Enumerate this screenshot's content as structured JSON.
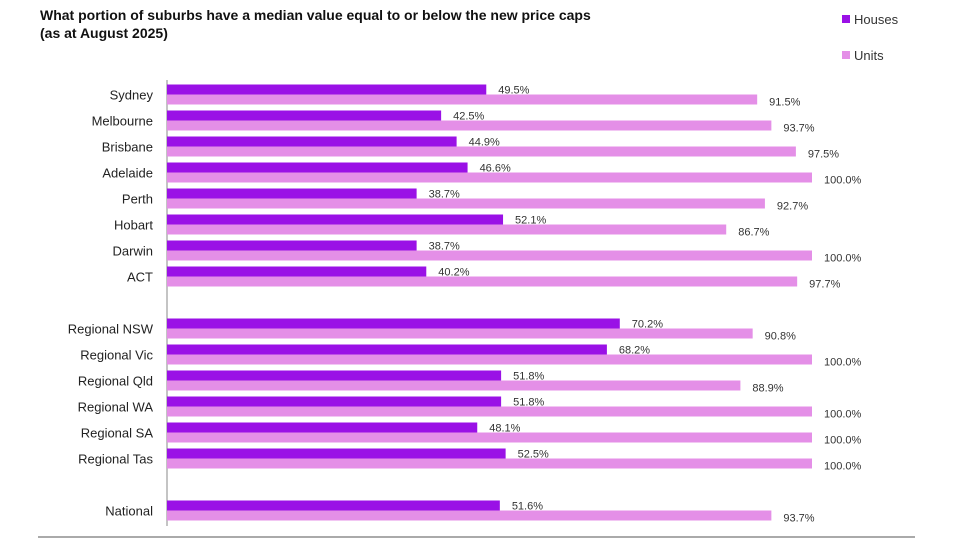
{
  "title_line1": "What portion of suburbs have a median value equal to or below the new price caps",
  "title_line2": "(as at August 2025)",
  "colors": {
    "houses": "#9a11e6",
    "units": "#e48fe7",
    "axis": "#888888"
  },
  "chart_data": {
    "type": "bar",
    "orientation": "horizontal",
    "title": "What portion of suburbs have a median value equal to or below the new price caps (as at August 2025)",
    "legend_position": "top-right",
    "grid": false,
    "xlim": [
      0,
      100
    ],
    "categories": [
      "Sydney",
      "Melbourne",
      "Brisbane",
      "Adelaide",
      "Perth",
      "Hobart",
      "Darwin",
      "ACT",
      "Regional NSW",
      "Regional Vic",
      "Regional Qld",
      "Regional WA",
      "Regional SA",
      "Regional Tas",
      "National"
    ],
    "series": [
      {
        "name": "Houses",
        "values": [
          49.5,
          42.5,
          44.9,
          46.6,
          38.7,
          52.1,
          38.7,
          40.2,
          70.2,
          68.2,
          51.8,
          51.8,
          48.1,
          52.5,
          51.6
        ],
        "labels": [
          "49.5%",
          "42.5%",
          "44.9%",
          "46.6%",
          "38.7%",
          "52.1%",
          "38.7%",
          "40.2%",
          "70.2%",
          "68.2%",
          "51.8%",
          "51.8%",
          "48.1%",
          "52.5%",
          "51.6%"
        ]
      },
      {
        "name": "Units",
        "values": [
          91.5,
          93.7,
          97.5,
          100.0,
          92.7,
          86.7,
          100.0,
          97.7,
          90.8,
          100.0,
          88.9,
          100.0,
          100.0,
          100.0,
          93.7
        ],
        "labels": [
          "91.5%",
          "93.7%",
          "97.5%",
          "100.0%",
          "92.7%",
          "86.7%",
          "100.0%",
          "97.7%",
          "90.8%",
          "100.0%",
          "88.9%",
          "100.0%",
          "100.0%",
          "100.0%",
          "93.7%"
        ]
      }
    ]
  }
}
